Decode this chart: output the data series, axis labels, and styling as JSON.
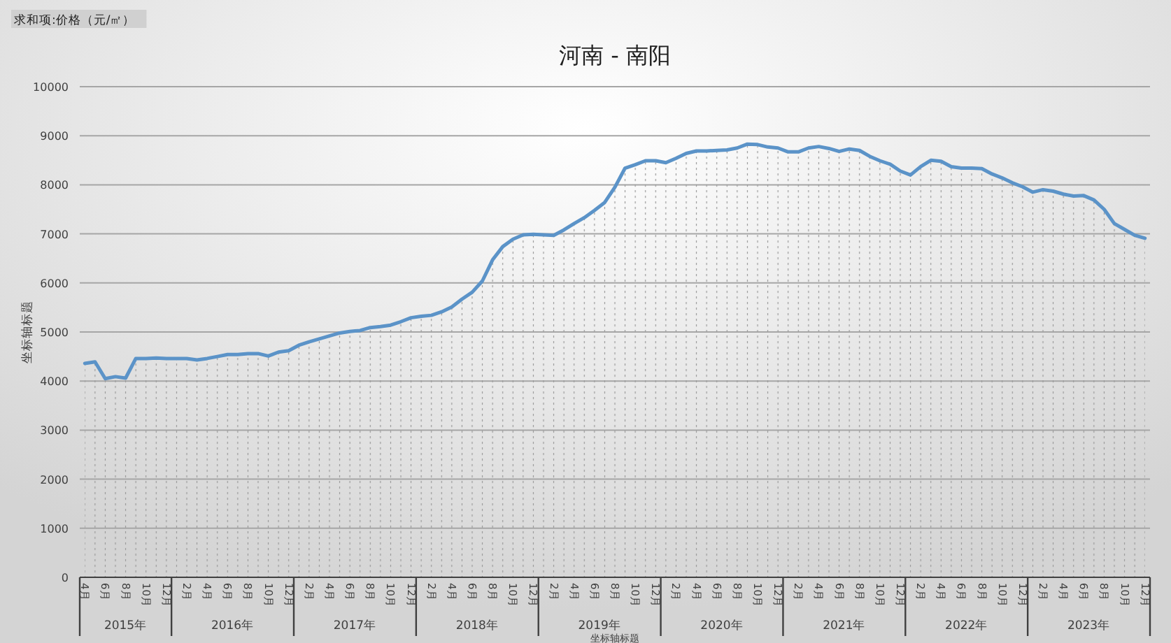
{
  "chart_data": {
    "type": "area",
    "title": "河南 - 南阳",
    "xlabel": "坐标轴标题",
    "ylabel": "坐标轴标题",
    "annotations": [
      "求和项:价格（元/㎡）",
      "2015年",
      "2016年",
      "2017年",
      "2018年",
      "2019年",
      "2020年",
      "2021年",
      "2022年",
      "2023年"
    ],
    "categories": [
      "4月",
      null,
      "6月",
      null,
      "8月",
      null,
      "10月",
      null,
      "12月",
      null,
      "2月",
      null,
      "4月",
      null,
      "6月",
      null,
      "8月",
      null,
      "10月",
      null,
      "12月",
      null,
      "2月",
      null,
      "4月",
      null,
      "6月",
      null,
      "8月",
      null,
      "10月",
      null,
      "12月",
      null,
      "2月",
      null,
      "4月",
      null,
      "6月",
      null,
      "8月",
      null,
      "10月",
      null,
      "12月",
      null,
      "2月",
      null,
      "4月",
      null,
      "6月",
      null,
      "8月",
      null,
      "10月",
      null,
      "12月",
      null,
      "2月",
      null,
      "4月",
      null,
      "6月",
      null,
      "8月",
      null,
      "10月",
      null,
      "12月",
      null,
      "2月",
      null,
      "4月",
      null,
      "6月",
      null,
      "8月",
      null,
      "10月",
      null,
      "12月",
      null,
      "2月",
      null,
      "4月",
      null,
      "6月",
      null,
      "8月",
      null,
      "10月",
      null,
      "12月",
      null,
      "2月",
      null,
      "4月",
      null,
      "6月",
      null,
      "8月",
      null,
      "10月",
      null,
      "12月"
    ],
    "series": [
      {
        "color": "#5b93c8",
        "values": [
          4360,
          4390,
          4050,
          4090,
          4060,
          4460,
          4460,
          4470,
          4460,
          4460,
          4460,
          4430,
          4460,
          4500,
          4540,
          4540,
          4560,
          4560,
          4510,
          4590,
          4620,
          4730,
          4800,
          4860,
          4920,
          4980,
          5010,
          5030,
          5090,
          5110,
          5140,
          5210,
          5290,
          5320,
          5340,
          5410,
          5510,
          5670,
          5810,
          6040,
          6470,
          6740,
          6890,
          6980,
          6990,
          6980,
          6970,
          7080,
          7210,
          7330,
          7480,
          7640,
          7950,
          8340,
          8410,
          8490,
          8490,
          8450,
          8540,
          8640,
          8690,
          8690,
          8700,
          8710,
          8750,
          8830,
          8820,
          8770,
          8750,
          8670,
          8670,
          8750,
          8780,
          8740,
          8680,
          8730,
          8700,
          8580,
          8490,
          8420,
          8280,
          8200,
          8370,
          8500,
          8480,
          8370,
          8340,
          8340,
          8330,
          8220,
          8140,
          8040,
          7960,
          7850,
          7900,
          7870,
          7810,
          7770,
          7780,
          7690,
          7500,
          7210,
          7090,
          6970,
          6910
        ]
      }
    ],
    "ylim": [
      0,
      10000
    ],
    "yticks": [
      0,
      1000,
      2000,
      3000,
      4000,
      5000,
      6000,
      7000,
      8000,
      9000,
      10000
    ],
    "grid": "y"
  }
}
